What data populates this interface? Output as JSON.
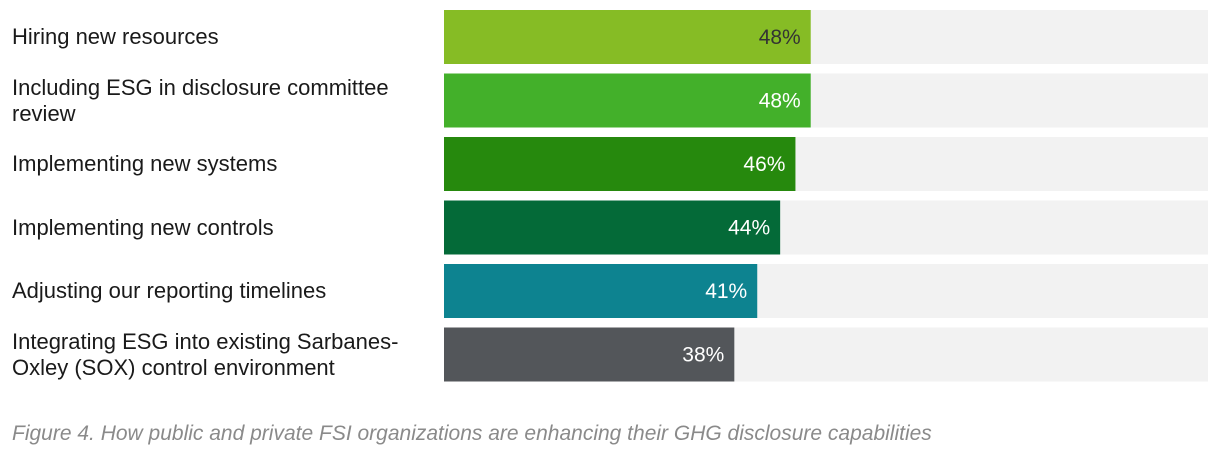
{
  "chart_data": {
    "type": "bar",
    "orientation": "horizontal",
    "categories": [
      "Hiring new resources",
      "Including ESG in disclosure committee review",
      "Implementing new systems",
      "Implementing new controls",
      "Adjusting our reporting timelines",
      "Integrating ESG into existing Sarbanes-Oxley (SOX) control environment"
    ],
    "values": [
      48,
      48,
      46,
      44,
      41,
      38
    ],
    "value_labels": [
      "48%",
      "48%",
      "46%",
      "44%",
      "41%",
      "38%"
    ],
    "xlim": [
      0,
      100
    ],
    "bar_colors": [
      "#86bc25",
      "#43b02a",
      "#26890d",
      "#046a38",
      "#0d8390",
      "#53565a"
    ],
    "track_color": "#f2f2f2",
    "label_colors": [
      "#333333",
      "#ffffff",
      "#ffffff",
      "#ffffff",
      "#ffffff",
      "#ffffff"
    ],
    "title": "",
    "xlabel": "",
    "ylabel": ""
  },
  "caption": "Figure 4. How public and private FSI organizations are enhancing their GHG disclosure capabilities"
}
